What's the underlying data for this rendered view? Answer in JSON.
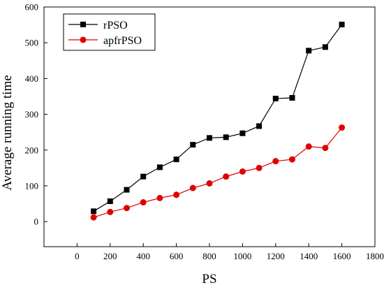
{
  "chart_data": {
    "type": "line",
    "title": "",
    "xlabel": "PS",
    "ylabel": "Average running time",
    "xlim": [
      -200,
      1800
    ],
    "ylim": [
      -70,
      600
    ],
    "xticks": [
      0,
      200,
      400,
      600,
      800,
      1000,
      1200,
      1400,
      1600,
      1800
    ],
    "yticks": [
      0,
      100,
      200,
      300,
      400,
      500,
      600
    ],
    "grid": false,
    "legend_position": "top-left",
    "series": [
      {
        "name": "rPSO",
        "color": "#000000",
        "marker": "square",
        "x": [
          100,
          200,
          300,
          400,
          500,
          600,
          700,
          800,
          900,
          1000,
          1100,
          1200,
          1300,
          1400,
          1500,
          1600
        ],
        "y": [
          29,
          57,
          89,
          126,
          152,
          174,
          215,
          234,
          236,
          247,
          267,
          344,
          346,
          478,
          488,
          551
        ]
      },
      {
        "name": "apfrPSO",
        "color": "#e00000",
        "marker": "circle",
        "x": [
          100,
          200,
          300,
          400,
          500,
          600,
          700,
          800,
          900,
          1000,
          1100,
          1200,
          1300,
          1400,
          1500,
          1600
        ],
        "y": [
          12,
          27,
          38,
          54,
          66,
          75,
          94,
          107,
          126,
          140,
          150,
          169,
          174,
          210,
          206,
          263
        ]
      }
    ]
  }
}
